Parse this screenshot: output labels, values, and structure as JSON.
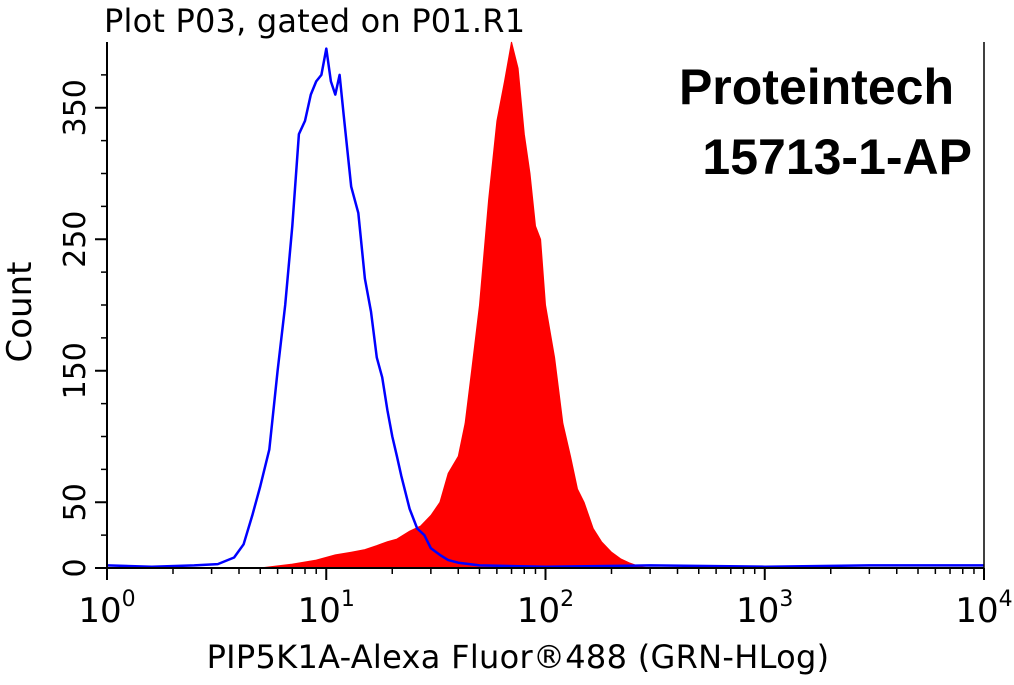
{
  "chart_data": {
    "type": "area",
    "title": "Plot P03, gated on P01.R1",
    "xlabel": "PIP5K1A-Alexa Fluor®488 (GRN-HLog)",
    "ylabel": "Count",
    "x_scale": "log",
    "xlim": [
      1,
      10000
    ],
    "ylim": [
      0,
      400
    ],
    "x_ticks": [
      {
        "base": "10",
        "exp": "0"
      },
      {
        "base": "10",
        "exp": "1"
      },
      {
        "base": "10",
        "exp": "2"
      },
      {
        "base": "10",
        "exp": "3"
      },
      {
        "base": "10",
        "exp": "4"
      }
    ],
    "y_ticks": [
      "0",
      "50",
      "150",
      "250",
      "350"
    ],
    "y_tick_values": [
      0,
      50,
      150,
      250,
      350
    ],
    "series": [
      {
        "color": "#0000ff",
        "style": "line",
        "x": [
          1,
          1.6,
          2.5,
          3.2,
          3.8,
          4.2,
          4.6,
          5.0,
          5.5,
          6.0,
          6.5,
          7.0,
          7.5,
          8.0,
          8.5,
          9.0,
          9.5,
          10.0,
          10.5,
          11.0,
          11.5,
          12.0,
          13.0,
          14.0,
          15.0,
          16.0,
          17.0,
          18.0,
          19.0,
          20.0,
          21.0,
          22.0,
          24.0,
          26.0,
          28.0,
          30.0,
          33.0,
          36.0,
          40.0,
          45.0,
          50.0,
          100,
          300,
          1000,
          3000,
          10000
        ],
        "y": [
          2,
          1,
          2,
          3,
          8,
          18,
          40,
          62,
          90,
          150,
          200,
          260,
          330,
          340,
          360,
          370,
          375,
          395,
          370,
          360,
          375,
          345,
          290,
          270,
          220,
          195,
          160,
          145,
          120,
          100,
          85,
          70,
          45,
          30,
          25,
          15,
          10,
          6,
          4,
          3,
          2,
          1,
          2,
          1,
          2,
          2
        ]
      },
      {
        "color": "#ff0000",
        "style": "filled",
        "x": [
          5,
          7,
          9,
          11,
          13,
          15,
          17,
          19,
          21,
          24,
          27,
          30,
          33,
          36,
          40,
          43,
          46,
          50,
          55,
          60,
          65,
          70,
          75,
          80,
          85,
          90,
          95,
          100,
          110,
          120,
          130,
          140,
          150,
          165,
          180,
          200,
          220,
          240,
          270,
          300
        ],
        "y": [
          0,
          3,
          6,
          10,
          12,
          14,
          17,
          20,
          22,
          28,
          32,
          40,
          50,
          72,
          85,
          110,
          150,
          200,
          280,
          340,
          370,
          400,
          380,
          330,
          300,
          260,
          250,
          200,
          160,
          110,
          85,
          60,
          50,
          30,
          20,
          12,
          7,
          4,
          1,
          0
        ]
      }
    ],
    "annotations": [
      "Proteintech",
      "15713-1-AP"
    ]
  }
}
